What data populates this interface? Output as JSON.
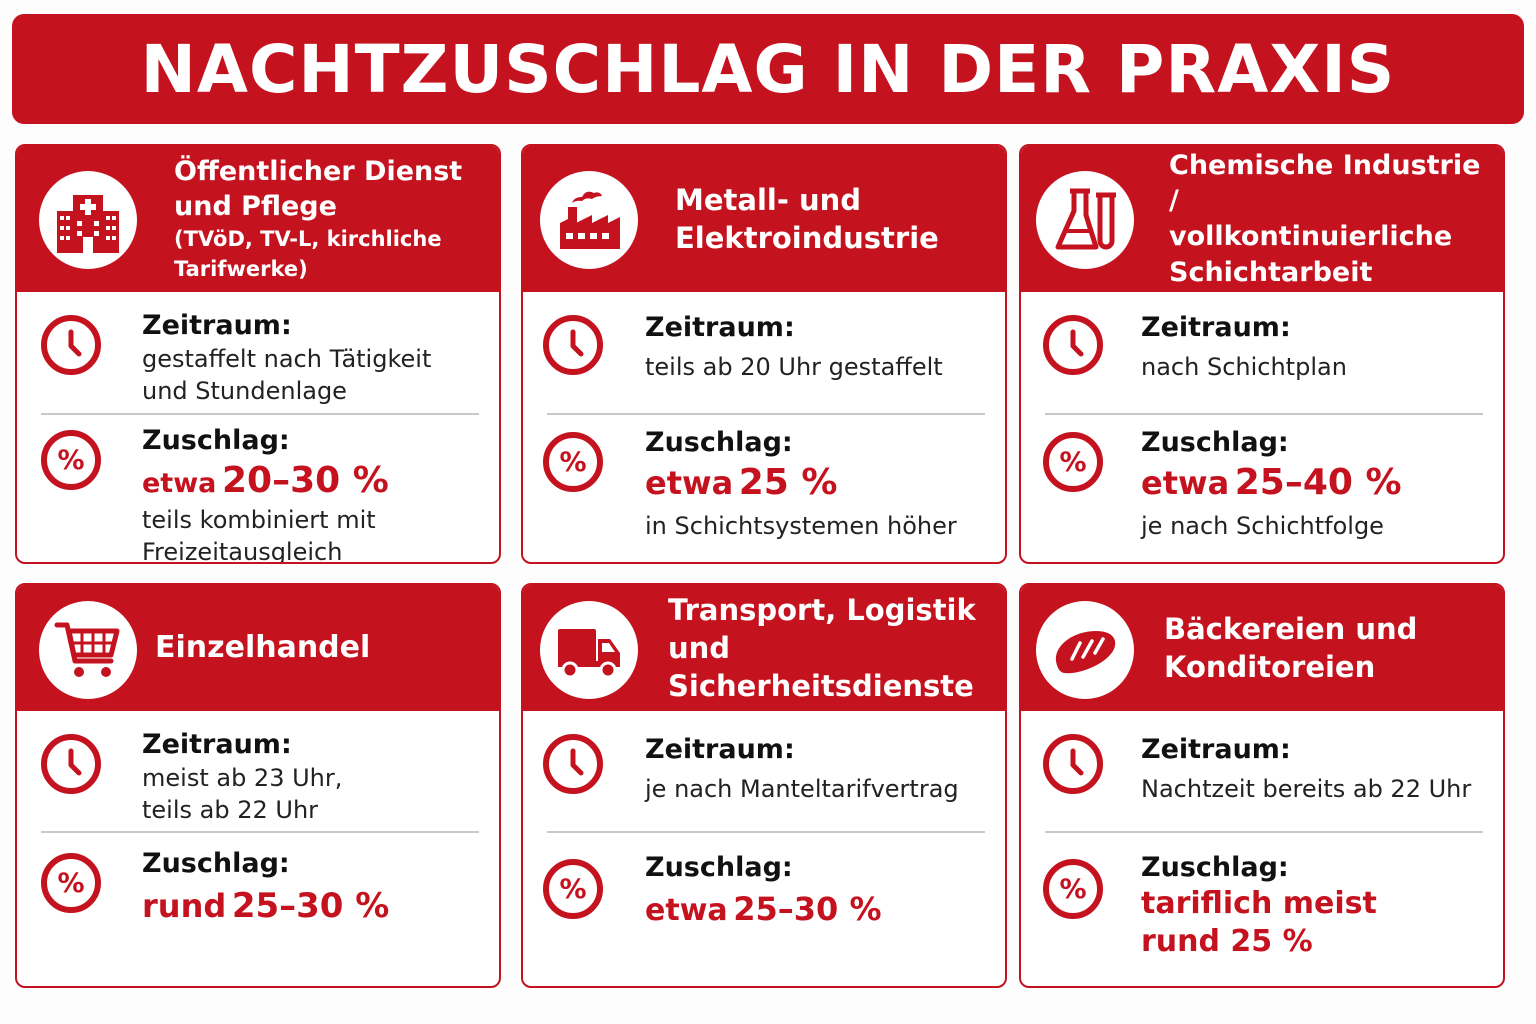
{
  "title": "NACHTZUSCHLAG IN DER PRAXIS",
  "colors": {
    "accent": "#c5121f"
  },
  "cards": [
    {
      "icon": "hospital-icon",
      "title_lines": [
        "Öffentlicher Dienst",
        "und Pflege"
      ],
      "subtitle_lines": [
        "(TVöD, TV-L, kirchliche",
        "Tarifwerke)"
      ],
      "zeitraum_label": "Zeitraum:",
      "zeitraum_lines": [
        "gestaffelt nach Tätigkeit",
        "und Stundenlage"
      ],
      "zuschlag_label": "Zuschlag:",
      "zuschlag_prefix": "etwa",
      "zuschlag_value": "20–30 %",
      "zuschlag_note_lines": [
        "teils kombiniert mit",
        "Freizeitausgleich"
      ]
    },
    {
      "icon": "factory-icon",
      "title_lines": [
        "Metall- und",
        "Elektroindustrie"
      ],
      "zeitraum_label": "Zeitraum:",
      "zeitraum_lines": [
        "teils ab 20 Uhr gestaffelt"
      ],
      "zuschlag_label": "Zuschlag:",
      "zuschlag_prefix": "etwa",
      "zuschlag_value": "25 %",
      "zuschlag_note_lines": [
        "in Schichtsystemen höher"
      ]
    },
    {
      "icon": "flask-icon",
      "title_lines": [
        "Chemische Industrie /",
        "vollkontinuierliche",
        "Schichtarbeit"
      ],
      "zeitraum_label": "Zeitraum:",
      "zeitraum_lines": [
        "nach Schichtplan"
      ],
      "zuschlag_label": "Zuschlag:",
      "zuschlag_prefix": "etwa",
      "zuschlag_value": "25–40 %",
      "zuschlag_note_lines": [
        "je nach Schichtfolge"
      ]
    },
    {
      "icon": "cart-icon",
      "title_lines": [
        "Einzelhandel"
      ],
      "zeitraum_label": "Zeitraum:",
      "zeitraum_lines": [
        "meist ab 23 Uhr,",
        "teils ab 22 Uhr"
      ],
      "zuschlag_label": "Zuschlag:",
      "zuschlag_prefix": "rund",
      "zuschlag_value": "25–30 %",
      "zuschlag_note_lines": []
    },
    {
      "icon": "truck-icon",
      "title_lines": [
        "Transport, Logistik",
        "und Sicherheitsdienste"
      ],
      "zeitraum_label": "Zeitraum:",
      "zeitraum_lines": [
        "je nach Manteltarifvertrag"
      ],
      "zuschlag_label": "Zuschlag:",
      "zuschlag_prefix": "etwa",
      "zuschlag_value": "25–30 %",
      "zuschlag_note_lines": []
    },
    {
      "icon": "bread-icon",
      "title_lines": [
        "Bäckereien und",
        "Konditoreien"
      ],
      "zeitraum_label": "Zeitraum:",
      "zeitraum_lines": [
        "Nachtzeit bereits ab 22 Uhr"
      ],
      "zuschlag_label": "Zuschlag:",
      "zuschlag_prefix": "tariflich meist",
      "zuschlag_value": "rund 25 %",
      "zuschlag_note_lines": []
    }
  ]
}
